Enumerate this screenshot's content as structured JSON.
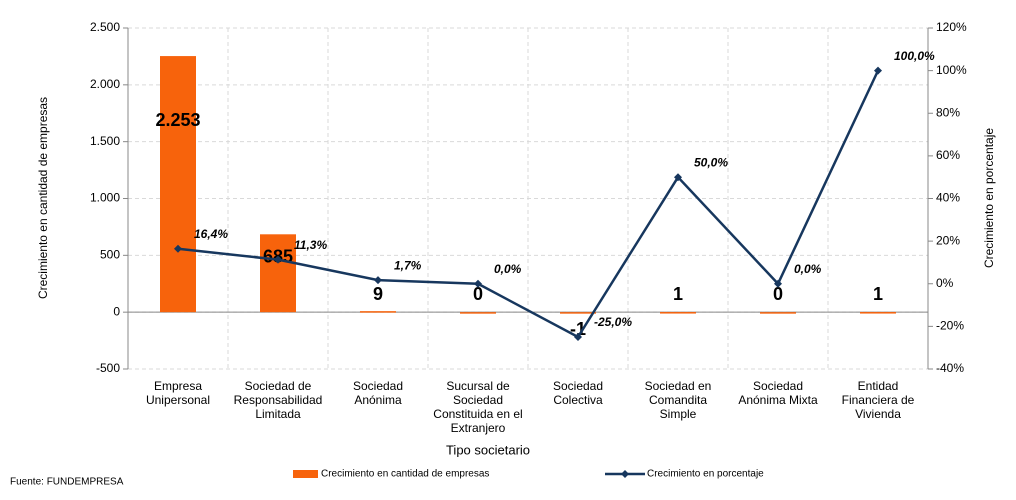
{
  "chart_data": {
    "type": "bar+line",
    "x_label": "Tipo societario",
    "y_label": "Crecimiento en cantidad de empresas",
    "y2_label": "Crecimiento en porcentaje",
    "source": "Fuente:  FUNDEMPRESA",
    "categories": [
      "Empresa Unipersonal",
      "Sociedad de Responsabilidad Limitada",
      "Sociedad Anónima",
      "Sucursal de Sociedad Constituida en el Extranjero",
      "Sociedad Colectiva",
      "Sociedad en Comandita Simple",
      "Sociedad Anónima Mixta",
      "Entidad Financiera de Vivienda"
    ],
    "series": [
      {
        "name": "Crecimiento en  cantidad de empresas",
        "type": "bar",
        "color": "#f7630c",
        "values": [
          2253,
          685,
          9,
          0,
          -1,
          1,
          0,
          1
        ],
        "value_labels": [
          "2.253",
          "685",
          "9",
          "0",
          "-1",
          "1",
          "0",
          "1"
        ]
      },
      {
        "name": "Crecimiento en porcentaje",
        "type": "line",
        "axis": "y2",
        "color": "#17375e",
        "values": [
          16.4,
          11.3,
          1.7,
          0.0,
          -25.0,
          50.0,
          0.0,
          100.0
        ],
        "value_labels": [
          "16,4%",
          "11,3%",
          "1,7%",
          "0,0%",
          "-25,0%",
          "50,0%",
          "0,0%",
          "100,0%"
        ]
      }
    ],
    "ylim": [
      -500,
      2500
    ],
    "yticks": [
      -500,
      0,
      500,
      {
        "value": 1000,
        "label": "1.000"
      },
      {
        "value": 1500,
        "label": "1.500"
      },
      {
        "value": 2000,
        "label": "2.000"
      },
      {
        "value": 2500,
        "label": "2.500"
      }
    ],
    "y2lim": [
      -40,
      120
    ],
    "y2ticks": [
      {
        "value": -40,
        "label": "-40%"
      },
      {
        "value": -20,
        "label": "-20%"
      },
      {
        "value": 0,
        "label": "0%"
      },
      {
        "value": 20,
        "label": "20%"
      },
      {
        "value": 40,
        "label": "40%"
      },
      {
        "value": 60,
        "label": "60%"
      },
      {
        "value": 80,
        "label": "80%"
      },
      {
        "value": 100,
        "label": "100%"
      },
      {
        "value": 120,
        "label": "120%"
      }
    ],
    "grid": true
  }
}
